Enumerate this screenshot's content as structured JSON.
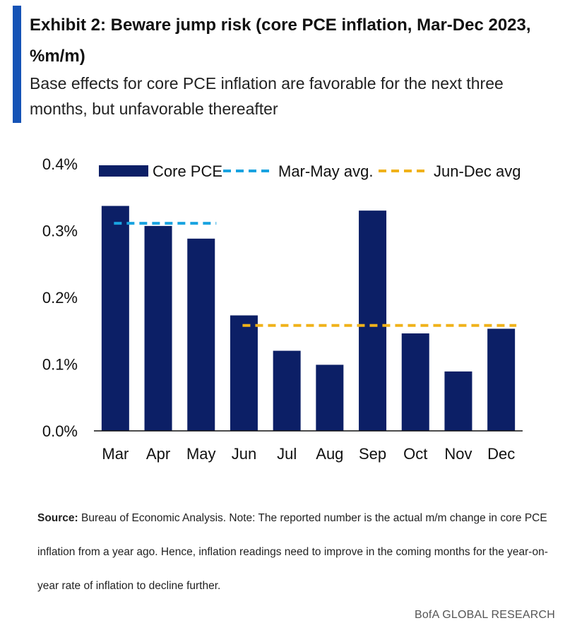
{
  "header": {
    "title": "Exhibit 2: Beware jump risk (core PCE inflation, Mar-Dec 2023, %m/m)",
    "subtitle": "Base effects for core PCE inflation are favorable for the next three months, but unfavorable thereafter",
    "accent_color": "#1553b6"
  },
  "chart_data": {
    "type": "bar",
    "title": "Beware jump risk (core PCE inflation, Mar-Dec 2023, %m/m)",
    "xlabel": "",
    "ylabel": "",
    "categories": [
      "Mar",
      "Apr",
      "May",
      "Jun",
      "Jul",
      "Aug",
      "Sep",
      "Oct",
      "Nov",
      "Dec"
    ],
    "series": [
      {
        "name": "Core PCE",
        "values": [
          0.337,
          0.307,
          0.288,
          0.173,
          0.12,
          0.099,
          0.33,
          0.146,
          0.089,
          0.153
        ],
        "color": "#0c1f66"
      }
    ],
    "reference_lines": [
      {
        "name": "Mar-May avg.",
        "value": 0.311,
        "from": "Mar",
        "to": "May",
        "color": "#19a3e0",
        "style": "dashed"
      },
      {
        "name": "Jun-Dec avg",
        "value": 0.158,
        "from": "Jun",
        "to": "Dec",
        "color": "#f0b21a",
        "style": "dashed"
      }
    ],
    "ylim": [
      0,
      0.4
    ],
    "y_ticks": [
      0.0,
      0.1,
      0.2,
      0.3,
      0.4
    ],
    "y_tick_labels": [
      "0.0%",
      "0.1%",
      "0.2%",
      "0.3%",
      "0.4%"
    ],
    "legend": {
      "position": "top",
      "entries": [
        "Core PCE",
        "Mar-May avg.",
        "Jun-Dec avg"
      ]
    },
    "grid": false
  },
  "footer": {
    "source_label": "Source:",
    "source_text": "Bureau of Economic Analysis. Note: The reported number is the actual m/m change in core PCE inflation from a year ago. Hence, inflation readings need to improve in the coming months for the year-on-year rate of inflation to decline further.",
    "brand": "BofA GLOBAL RESEARCH"
  }
}
